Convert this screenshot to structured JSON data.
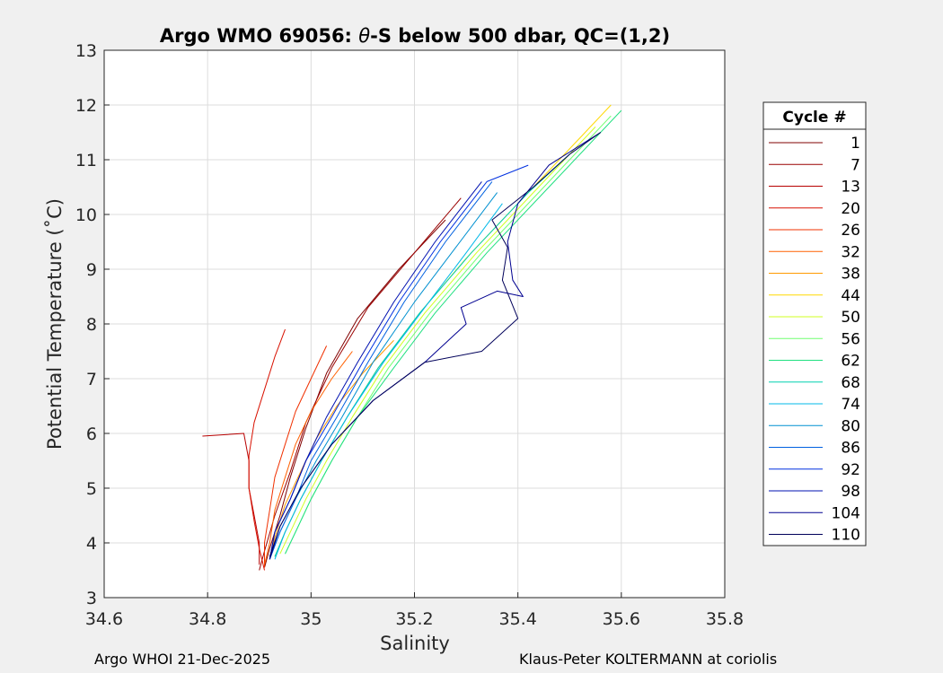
{
  "chart_data": {
    "type": "line",
    "title": "Argo WMO 69056: θ-S below 500 dbar,  QC=(1,2)",
    "title_prefix": "Argo WMO 69056: ",
    "title_theta": "θ",
    "title_suffix": "-S below 500 dbar,  QC=(1,2)",
    "xlabel": "Salinity",
    "ylabel": "Potential Temperature (˚C)",
    "xlim": [
      34.6,
      35.8
    ],
    "ylim": [
      3,
      13
    ],
    "xticks": [
      34.6,
      34.8,
      35.0,
      35.2,
      35.4,
      35.6,
      35.8
    ],
    "xtick_labels": [
      "34.6",
      "34.8",
      "35",
      "35.2",
      "35.4",
      "35.6",
      "35.8"
    ],
    "yticks": [
      3,
      4,
      5,
      6,
      7,
      8,
      9,
      10,
      11,
      12,
      13
    ],
    "ytick_labels": [
      "3",
      "4",
      "5",
      "6",
      "7",
      "8",
      "9",
      "10",
      "11",
      "12",
      "13"
    ],
    "grid": true,
    "legend_title": "Cycle #",
    "legend_placement": "right-outside",
    "series": [
      {
        "name": "1",
        "color": "#800000",
        "x": [
          34.91,
          34.92,
          34.94,
          34.96,
          34.99,
          35.03,
          35.09,
          35.17,
          35.26
        ],
        "y": [
          3.55,
          3.9,
          4.5,
          5.2,
          6.1,
          7.1,
          8.1,
          9.0,
          9.9
        ]
      },
      {
        "name": "7",
        "color": "#9a0000",
        "x": [
          34.9,
          34.91,
          34.93,
          34.96,
          34.99,
          35.04,
          35.11,
          35.2,
          35.29
        ],
        "y": [
          3.5,
          3.85,
          4.5,
          5.3,
          6.2,
          7.2,
          8.3,
          9.3,
          10.3
        ]
      },
      {
        "name": "13",
        "color": "#b80000",
        "x": [
          34.9,
          34.9,
          34.89,
          34.88,
          34.88,
          34.87,
          34.79
        ],
        "y": [
          3.6,
          4.0,
          4.5,
          5.0,
          5.5,
          6.0,
          5.95
        ]
      },
      {
        "name": "20",
        "color": "#d81000",
        "x": [
          34.91,
          34.9,
          34.89,
          34.88,
          34.88,
          34.89,
          34.91,
          34.93,
          34.95
        ],
        "y": [
          3.5,
          3.9,
          4.4,
          5.0,
          5.6,
          6.2,
          6.8,
          7.4,
          7.9
        ]
      },
      {
        "name": "26",
        "color": "#f03000",
        "x": [
          34.91,
          34.91,
          34.92,
          34.93,
          34.95,
          34.97,
          35.0,
          35.03
        ],
        "y": [
          3.55,
          4.0,
          4.6,
          5.2,
          5.8,
          6.4,
          7.0,
          7.6
        ]
      },
      {
        "name": "32",
        "color": "#ff6000",
        "x": [
          34.91,
          34.92,
          34.93,
          34.95,
          34.97,
          35.0,
          35.04,
          35.08
        ],
        "y": [
          3.6,
          4.0,
          4.6,
          5.2,
          5.8,
          6.4,
          7.0,
          7.5
        ]
      },
      {
        "name": "38",
        "color": "#ff9a00",
        "x": [
          34.92,
          34.93,
          34.95,
          34.98,
          35.01,
          35.05,
          35.1,
          35.16
        ],
        "y": [
          3.7,
          4.1,
          4.7,
          5.3,
          5.9,
          6.5,
          7.1,
          7.7
        ]
      },
      {
        "name": "44",
        "color": "#ffd800",
        "x": [
          34.93,
          34.95,
          34.98,
          35.02,
          35.07,
          35.13,
          35.21,
          35.3,
          35.41,
          35.52,
          35.58
        ],
        "y": [
          3.75,
          4.2,
          4.8,
          5.5,
          6.3,
          7.2,
          8.2,
          9.2,
          10.3,
          11.4,
          12.0
        ]
      },
      {
        "name": "50",
        "color": "#d0ff20",
        "x": [
          34.94,
          34.96,
          34.99,
          35.03,
          35.08,
          35.14,
          35.22,
          35.32,
          35.43,
          35.55
        ],
        "y": [
          3.8,
          4.2,
          4.8,
          5.5,
          6.3,
          7.2,
          8.2,
          9.3,
          10.4,
          11.6
        ]
      },
      {
        "name": "56",
        "color": "#70ff70",
        "x": [
          34.95,
          34.97,
          35.0,
          35.04,
          35.09,
          35.15,
          35.23,
          35.33,
          35.45,
          35.58
        ],
        "y": [
          3.8,
          4.2,
          4.8,
          5.5,
          6.3,
          7.2,
          8.2,
          9.3,
          10.5,
          11.8
        ]
      },
      {
        "name": "62",
        "color": "#20e080",
        "x": [
          34.95,
          34.97,
          35.0,
          35.04,
          35.09,
          35.16,
          35.24,
          35.34,
          35.46,
          35.6
        ],
        "y": [
          3.8,
          4.2,
          4.8,
          5.5,
          6.3,
          7.2,
          8.2,
          9.3,
          10.5,
          11.9
        ]
      },
      {
        "name": "68",
        "color": "#00d0b0",
        "x": [
          34.93,
          34.95,
          34.98,
          35.02,
          35.07,
          35.13,
          35.21,
          35.31,
          35.42,
          35.5
        ],
        "y": [
          3.75,
          4.2,
          4.8,
          5.5,
          6.3,
          7.2,
          8.2,
          9.3,
          10.4,
          11.1
        ]
      },
      {
        "name": "74",
        "color": "#00b8e8",
        "x": [
          34.93,
          34.95,
          34.98,
          35.02,
          35.07,
          35.14,
          35.22,
          35.3,
          35.37
        ],
        "y": [
          3.7,
          4.2,
          4.8,
          5.5,
          6.3,
          7.3,
          8.3,
          9.3,
          10.2
        ]
      },
      {
        "name": "80",
        "color": "#0090d0",
        "x": [
          34.92,
          34.94,
          34.97,
          35.01,
          35.06,
          35.12,
          35.2,
          35.28,
          35.36
        ],
        "y": [
          3.7,
          4.2,
          4.8,
          5.5,
          6.3,
          7.3,
          8.4,
          9.4,
          10.4
        ]
      },
      {
        "name": "86",
        "color": "#0060e0",
        "x": [
          34.92,
          34.94,
          34.97,
          35.0,
          35.05,
          35.11,
          35.18,
          35.26,
          35.35
        ],
        "y": [
          3.7,
          4.2,
          4.8,
          5.5,
          6.3,
          7.3,
          8.4,
          9.5,
          10.6
        ]
      },
      {
        "name": "92",
        "color": "#0030e0",
        "x": [
          34.92,
          34.93,
          34.96,
          34.99,
          35.04,
          35.1,
          35.17,
          35.25,
          35.34,
          35.42
        ],
        "y": [
          3.7,
          4.2,
          4.8,
          5.5,
          6.3,
          7.3,
          8.4,
          9.5,
          10.6,
          10.9
        ]
      },
      {
        "name": "98",
        "color": "#0010b0",
        "x": [
          34.92,
          34.93,
          34.96,
          34.99,
          35.03,
          35.09,
          35.16,
          35.24,
          35.33
        ],
        "y": [
          3.7,
          4.2,
          4.8,
          5.5,
          6.3,
          7.3,
          8.4,
          9.5,
          10.6
        ]
      },
      {
        "name": "104",
        "color": "#000090",
        "x": [
          34.92,
          34.94,
          34.98,
          35.04,
          35.12,
          35.22,
          35.3,
          35.29,
          35.36,
          35.41,
          35.39,
          35.38,
          35.4,
          35.46,
          35.56
        ],
        "y": [
          3.7,
          4.3,
          5.0,
          5.8,
          6.6,
          7.3,
          8.0,
          8.3,
          8.6,
          8.5,
          8.8,
          9.5,
          10.2,
          10.9,
          11.5
        ]
      },
      {
        "name": "110",
        "color": "#00005a",
        "x": [
          34.92,
          34.94,
          34.98,
          35.04,
          35.12,
          35.22,
          35.33,
          35.4,
          35.37,
          35.38,
          35.35,
          35.43,
          35.5,
          35.56
        ],
        "y": [
          3.75,
          4.3,
          5.0,
          5.8,
          6.6,
          7.3,
          7.5,
          8.1,
          8.8,
          9.4,
          9.9,
          10.5,
          11.1,
          11.5
        ]
      }
    ]
  },
  "footer": {
    "left": "Argo WHOI 21-Dec-2025",
    "right": "Klaus-Peter KOLTERMANN at coriolis"
  }
}
